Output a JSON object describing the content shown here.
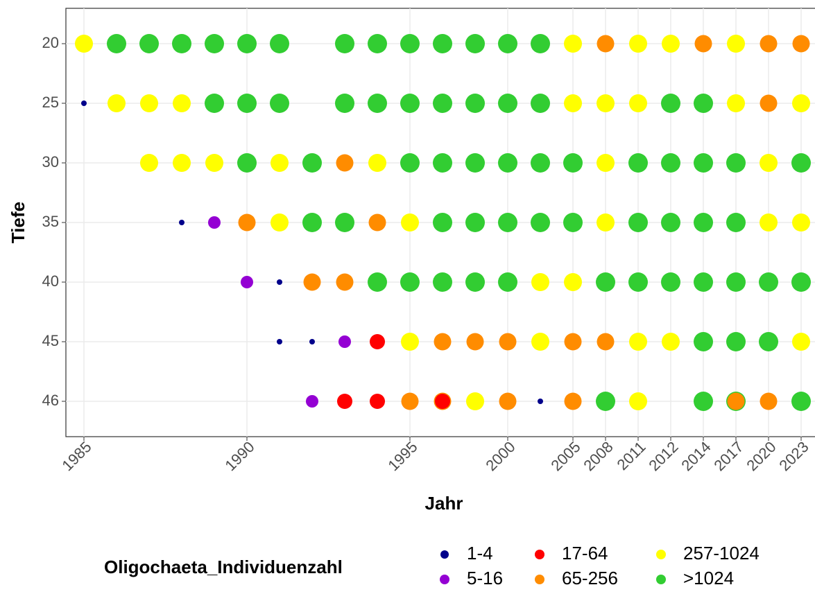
{
  "chart_data": {
    "type": "dotmatrix",
    "x_label": "Jahr",
    "y_label": "Tiefe",
    "legend_title": "Oligochaeta_Individuenzahl",
    "grid": true,
    "categories": [
      "1985",
      null,
      null,
      null,
      null,
      "1990",
      null,
      null,
      null,
      null,
      "1995",
      null,
      null,
      "2000",
      null,
      "2005",
      "2008",
      "2011",
      "2012",
      "2014",
      "2017",
      "2020",
      "2023"
    ],
    "y_categories": [
      "20",
      "25",
      "30",
      "35",
      "40",
      "45",
      "46"
    ],
    "classes": [
      {
        "name": "1-4",
        "color": "#00008b",
        "size": 4
      },
      {
        "name": "5-16",
        "color": "#9400d3",
        "size": 9
      },
      {
        "name": "17-64",
        "color": "#ff0000",
        "size": 11
      },
      {
        "name": "65-256",
        "color": "#ff8c00",
        "size": 12.5
      },
      {
        "name": "257-1024",
        "color": "#ffff00",
        "size": 13
      },
      {
        "name": ">1024",
        "color": "#32cd32",
        "size": 14
      }
    ],
    "cells": [
      [
        [
          "257-1024"
        ],
        [
          ">1024"
        ],
        [
          ">1024"
        ],
        [
          ">1024"
        ],
        [
          ">1024"
        ],
        [
          ">1024"
        ],
        [
          ">1024"
        ],
        [],
        [
          ">1024"
        ],
        [
          ">1024"
        ],
        [
          ">1024"
        ],
        [
          ">1024"
        ],
        [
          ">1024"
        ],
        [
          ">1024"
        ],
        [
          ">1024"
        ],
        [
          "257-1024"
        ],
        [
          "65-256"
        ],
        [
          "257-1024"
        ],
        [
          "257-1024"
        ],
        [
          "65-256"
        ],
        [
          "257-1024"
        ],
        [
          "65-256"
        ],
        [
          "65-256"
        ]
      ],
      [
        [
          "1-4"
        ],
        [
          "257-1024"
        ],
        [
          "257-1024"
        ],
        [
          "257-1024"
        ],
        [
          ">1024"
        ],
        [
          ">1024"
        ],
        [
          ">1024"
        ],
        [],
        [
          ">1024"
        ],
        [
          ">1024"
        ],
        [
          ">1024"
        ],
        [
          ">1024"
        ],
        [
          ">1024"
        ],
        [
          ">1024"
        ],
        [
          ">1024"
        ],
        [
          "257-1024"
        ],
        [
          "257-1024"
        ],
        [
          "257-1024"
        ],
        [
          ">1024"
        ],
        [
          ">1024"
        ],
        [
          "257-1024"
        ],
        [
          "65-256"
        ],
        [
          "257-1024"
        ]
      ],
      [
        [],
        [],
        [
          "257-1024"
        ],
        [
          "257-1024"
        ],
        [
          "257-1024"
        ],
        [
          ">1024"
        ],
        [
          "257-1024"
        ],
        [
          ">1024"
        ],
        [
          "65-256"
        ],
        [
          "257-1024"
        ],
        [
          ">1024"
        ],
        [
          ">1024"
        ],
        [
          ">1024"
        ],
        [
          ">1024"
        ],
        [
          ">1024"
        ],
        [
          ">1024"
        ],
        [
          "257-1024"
        ],
        [
          ">1024"
        ],
        [
          ">1024"
        ],
        [
          ">1024"
        ],
        [
          ">1024"
        ],
        [
          "257-1024"
        ],
        [
          ">1024"
        ]
      ],
      [
        [],
        [],
        [],
        [
          "1-4"
        ],
        [
          "5-16"
        ],
        [
          "65-256"
        ],
        [
          "257-1024"
        ],
        [
          ">1024"
        ],
        [
          ">1024"
        ],
        [
          "65-256"
        ],
        [
          "257-1024"
        ],
        [
          ">1024"
        ],
        [
          ">1024"
        ],
        [
          ">1024"
        ],
        [
          ">1024"
        ],
        [
          ">1024"
        ],
        [
          "257-1024"
        ],
        [
          ">1024"
        ],
        [
          ">1024"
        ],
        [
          ">1024"
        ],
        [
          ">1024"
        ],
        [
          "257-1024"
        ],
        [
          "257-1024"
        ]
      ],
      [
        [],
        [],
        [],
        [],
        [],
        [
          "5-16"
        ],
        [
          "1-4"
        ],
        [
          "65-256"
        ],
        [
          "65-256"
        ],
        [
          ">1024"
        ],
        [
          ">1024"
        ],
        [
          ">1024"
        ],
        [
          ">1024"
        ],
        [
          ">1024"
        ],
        [
          "257-1024"
        ],
        [
          "257-1024"
        ],
        [
          ">1024"
        ],
        [
          ">1024"
        ],
        [
          ">1024"
        ],
        [
          ">1024"
        ],
        [
          ">1024"
        ],
        [
          ">1024"
        ],
        [
          ">1024"
        ]
      ],
      [
        [],
        [],
        [],
        [],
        [],
        [],
        [
          "1-4"
        ],
        [
          "1-4"
        ],
        [
          "5-16"
        ],
        [
          "17-64"
        ],
        [
          "257-1024"
        ],
        [
          "65-256"
        ],
        [
          "65-256"
        ],
        [
          "65-256"
        ],
        [
          "257-1024"
        ],
        [
          "65-256"
        ],
        [
          "65-256"
        ],
        [
          "257-1024"
        ],
        [
          "257-1024"
        ],
        [
          ">1024"
        ],
        [
          ">1024"
        ],
        [
          ">1024"
        ],
        [
          "257-1024"
        ]
      ],
      [
        [],
        [],
        [],
        [],
        [],
        [],
        [],
        [
          "5-16"
        ],
        [
          "17-64"
        ],
        [
          "17-64"
        ],
        [
          "65-256"
        ],
        [
          "65-256",
          "17-64"
        ],
        [
          "257-1024"
        ],
        [
          "65-256"
        ],
        [
          "1-4"
        ],
        [
          "65-256"
        ],
        [
          ">1024"
        ],
        [
          "257-1024"
        ],
        [],
        [
          ">1024"
        ],
        [
          ">1024",
          "65-256"
        ],
        [
          "65-256"
        ],
        [
          ">1024"
        ]
      ]
    ]
  }
}
